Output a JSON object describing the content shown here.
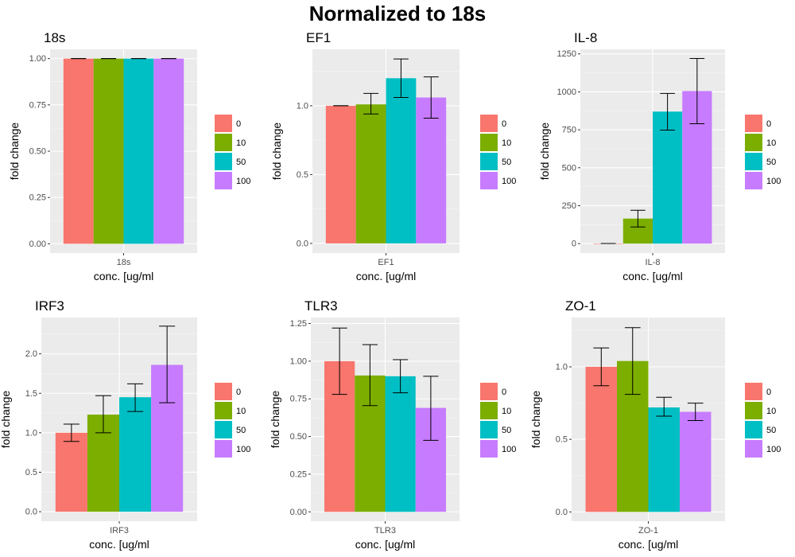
{
  "page": {
    "title": "Normalized to 18s"
  },
  "legend": {
    "entries": [
      "0",
      "10",
      "50",
      "100"
    ],
    "colors": [
      "#f8766d",
      "#7cae00",
      "#00bfc4",
      "#c77cff"
    ]
  },
  "style": {
    "panel_bg": "#ebebeb",
    "grid_major": "#ffffff",
    "grid_minor": "#f5f5f5",
    "axis_text": "#4d4d4d",
    "error_bar": "#000000"
  },
  "chart_data": [
    {
      "type": "bar",
      "title": "18s",
      "xlabel": "conc. [ug/ml",
      "ylabel": "fold change",
      "category": "18s",
      "ylim": [
        -0.05,
        1.05
      ],
      "yticks": [
        0,
        0.25,
        0.5,
        0.75,
        1
      ],
      "ytick_labels": [
        "0.00",
        "0.25",
        "0.50",
        "0.75",
        "1.00"
      ],
      "grid": true,
      "legend_position": "right",
      "series": [
        {
          "name": "0",
          "value": 1.0,
          "err": [
            1.0,
            1.0
          ]
        },
        {
          "name": "10",
          "value": 1.0,
          "err": [
            1.0,
            1.0
          ]
        },
        {
          "name": "50",
          "value": 1.0,
          "err": [
            1.0,
            1.0
          ]
        },
        {
          "name": "100",
          "value": 1.0,
          "err": [
            1.0,
            1.0
          ]
        }
      ]
    },
    {
      "type": "bar",
      "title": "EF1",
      "xlabel": "conc. [ug/ml",
      "ylabel": "fold change",
      "category": "EF1",
      "ylim": [
        -0.07,
        1.41
      ],
      "yticks": [
        0,
        0.5,
        1
      ],
      "ytick_labels": [
        "0.0",
        "0.5",
        "1.0"
      ],
      "grid": true,
      "legend_position": "right",
      "series": [
        {
          "name": "0",
          "value": 1.0,
          "err": [
            1.0,
            1.0
          ]
        },
        {
          "name": "10",
          "value": 1.01,
          "err": [
            0.94,
            1.09
          ]
        },
        {
          "name": "50",
          "value": 1.2,
          "err": [
            1.06,
            1.34
          ]
        },
        {
          "name": "100",
          "value": 1.06,
          "err": [
            0.91,
            1.21
          ]
        }
      ]
    },
    {
      "type": "bar",
      "title": "IL-8",
      "xlabel": "conc. [ug/ml",
      "ylabel": "fold change",
      "category": "IL-8",
      "ylim": [
        -62,
        1280
      ],
      "yticks": [
        0,
        250,
        500,
        750,
        1000,
        1250
      ],
      "ytick_labels": [
        "0",
        "250",
        "500",
        "750",
        "1000",
        "1250"
      ],
      "grid": true,
      "legend_position": "right",
      "series": [
        {
          "name": "0",
          "value": 1,
          "err": [
            1,
            1
          ]
        },
        {
          "name": "10",
          "value": 165,
          "err": [
            110,
            220
          ]
        },
        {
          "name": "50",
          "value": 870,
          "err": [
            748,
            990
          ]
        },
        {
          "name": "100",
          "value": 1005,
          "err": [
            790,
            1220
          ]
        }
      ]
    },
    {
      "type": "bar",
      "title": "IRF3",
      "xlabel": "conc. [ug/ml",
      "ylabel": "fold change",
      "category": "IRF3",
      "ylim": [
        -0.12,
        2.46
      ],
      "yticks": [
        0,
        0.5,
        1,
        1.5,
        2
      ],
      "ytick_labels": [
        "0.0",
        "0.5",
        "1.0",
        "1.5",
        "2.0"
      ],
      "grid": true,
      "legend_position": "right",
      "series": [
        {
          "name": "0",
          "value": 1.0,
          "err": [
            0.89,
            1.11
          ]
        },
        {
          "name": "10",
          "value": 1.23,
          "err": [
            1.0,
            1.47
          ]
        },
        {
          "name": "50",
          "value": 1.45,
          "err": [
            1.27,
            1.62
          ]
        },
        {
          "name": "100",
          "value": 1.86,
          "err": [
            1.38,
            2.35
          ]
        }
      ]
    },
    {
      "type": "bar",
      "title": "TLR3",
      "xlabel": "conc. [ug/ml",
      "ylabel": "fold change",
      "category": "TLR3",
      "ylim": [
        -0.062,
        1.29
      ],
      "yticks": [
        0,
        0.25,
        0.5,
        0.75,
        1,
        1.25
      ],
      "ytick_labels": [
        "0.00",
        "0.25",
        "0.50",
        "0.75",
        "1.00",
        "1.25"
      ],
      "grid": true,
      "legend_position": "right",
      "series": [
        {
          "name": "0",
          "value": 1.0,
          "err": [
            0.78,
            1.22
          ]
        },
        {
          "name": "10",
          "value": 0.905,
          "err": [
            0.705,
            1.11
          ]
        },
        {
          "name": "50",
          "value": 0.9,
          "err": [
            0.79,
            1.01
          ]
        },
        {
          "name": "100",
          "value": 0.69,
          "err": [
            0.475,
            0.9
          ]
        }
      ]
    },
    {
      "type": "bar",
      "title": "ZO-1",
      "xlabel": "conc. [ug/ml",
      "ylabel": "fold change",
      "category": "ZO-1",
      "ylim": [
        -0.064,
        1.34
      ],
      "yticks": [
        0,
        0.5,
        1
      ],
      "ytick_labels": [
        "0.0",
        "0.5",
        "1.0"
      ],
      "grid": true,
      "legend_position": "right",
      "series": [
        {
          "name": "0",
          "value": 1.0,
          "err": [
            0.87,
            1.13
          ]
        },
        {
          "name": "10",
          "value": 1.04,
          "err": [
            0.81,
            1.27
          ]
        },
        {
          "name": "50",
          "value": 0.72,
          "err": [
            0.66,
            0.79
          ]
        },
        {
          "name": "100",
          "value": 0.69,
          "err": [
            0.63,
            0.75
          ]
        }
      ]
    }
  ]
}
